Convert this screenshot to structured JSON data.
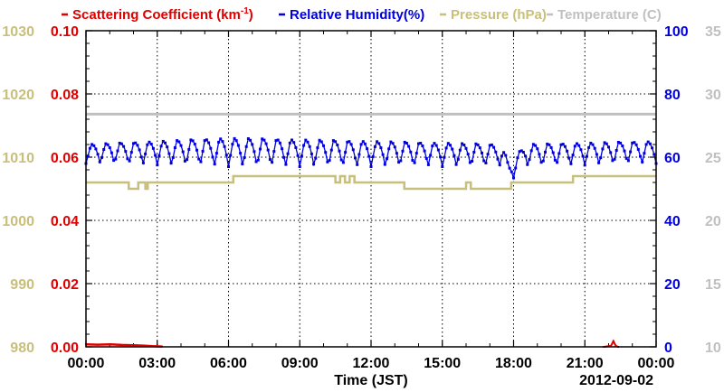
{
  "chart_data": {
    "type": "line",
    "title": "",
    "xlabel": "Time (JST)",
    "date_label": "2012-09-02",
    "grid": true,
    "legend_position": "top",
    "x_range": [
      "00:00",
      "24:00"
    ],
    "x_tick_labels": [
      "00:00",
      "03:00",
      "06:00",
      "09:00",
      "12:00",
      "15:00",
      "18:00",
      "21:00",
      "00:00"
    ],
    "axes": {
      "scattering": {
        "ylim": [
          0,
          0.1
        ],
        "ticks": [
          "0.00",
          "0.02",
          "0.04",
          "0.06",
          "0.08",
          "0.10"
        ],
        "color": "#e00000"
      },
      "pressure": {
        "ylim": [
          980,
          1030
        ],
        "ticks": [
          "980",
          "990",
          "1000",
          "1010",
          "1020",
          "1030"
        ],
        "color": "#c8bf7a"
      },
      "humidity": {
        "ylim": [
          0,
          100
        ],
        "ticks": [
          "0",
          "20",
          "40",
          "60",
          "80",
          "100"
        ],
        "color": "#0000dd"
      },
      "temperature": {
        "ylim": [
          10,
          35
        ],
        "ticks": [
          "10",
          "15",
          "20",
          "25",
          "30",
          "35"
        ],
        "color": "#c0c0c0"
      }
    },
    "series": [
      {
        "name": "Scattering Coefficient (km",
        "name_sup": "-1",
        "name_suffix": ")",
        "axis": "scattering",
        "color": "#e00000",
        "x_hours": [
          0,
          0.5,
          1.0,
          1.5,
          2.0,
          2.4,
          2.8,
          3.2,
          21.8,
          22.1,
          22.2,
          22.3,
          22.4
        ],
        "values": [
          0.0008,
          0.0007,
          0.0008,
          0.0006,
          0.0005,
          0.0004,
          0.0002,
          0.0001,
          0.0,
          0.0003,
          0.0018,
          0.0003,
          0.0
        ]
      },
      {
        "name": "Relative Humidity(%)",
        "axis": "humidity",
        "color": "#0000dd",
        "cycle_hours": 0.6,
        "low_phase": 0.35,
        "knots_hours": [
          0,
          6,
          12,
          17.5,
          17.8,
          18.5,
          24
        ],
        "peak": [
          64,
          66,
          65,
          64,
          58,
          64,
          65
        ],
        "trough": [
          58,
          57,
          57,
          57,
          52,
          57,
          58
        ]
      },
      {
        "name": "Pressure (hPa)",
        "axis": "pressure",
        "color": "#c8bf7a",
        "steps": [
          [
            0,
            1006
          ],
          [
            1.8,
            1005
          ],
          [
            2.2,
            1006
          ],
          [
            2.5,
            1005
          ],
          [
            2.6,
            1006
          ],
          [
            6.2,
            1007
          ],
          [
            10.5,
            1006
          ],
          [
            10.7,
            1007
          ],
          [
            10.9,
            1006
          ],
          [
            11.1,
            1007
          ],
          [
            11.3,
            1006
          ],
          [
            13.4,
            1005
          ],
          [
            16.0,
            1006
          ],
          [
            16.2,
            1005
          ],
          [
            17.9,
            1006
          ],
          [
            20.5,
            1007
          ],
          [
            24,
            1007
          ]
        ]
      },
      {
        "name": "Temperature (C)",
        "axis": "temperature",
        "color": "#c0c0c0",
        "x_hours": [
          0,
          24
        ],
        "values": [
          28.4,
          28.4
        ]
      }
    ]
  }
}
